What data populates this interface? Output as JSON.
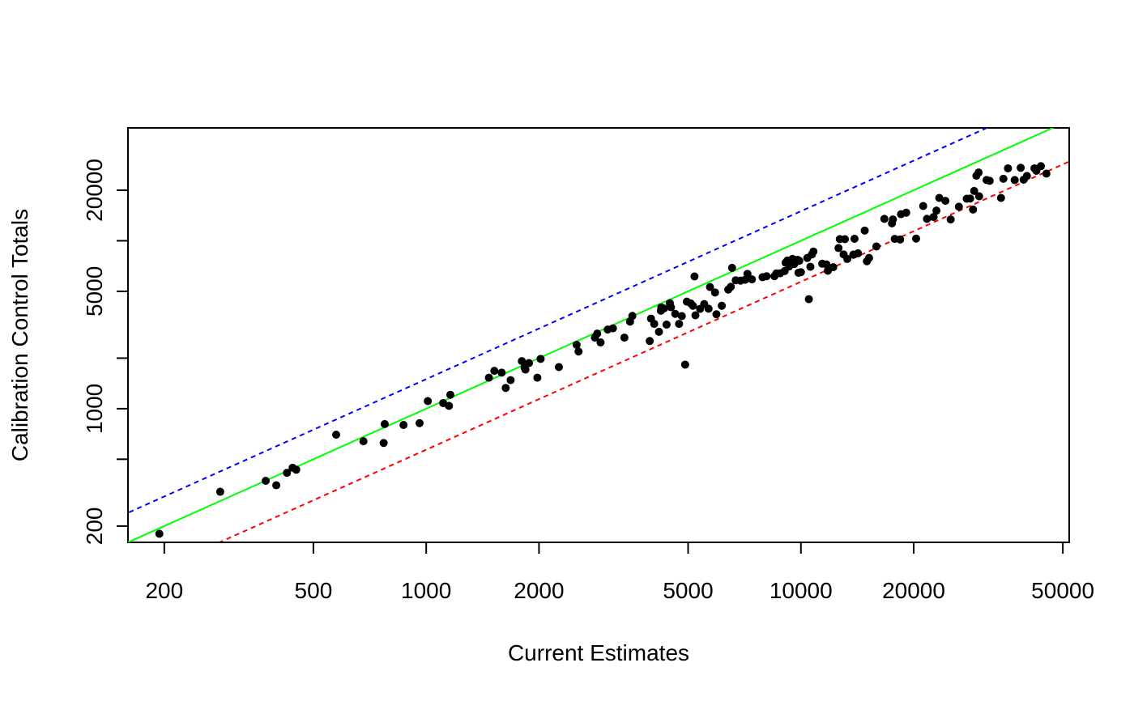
{
  "chart_data": {
    "type": "scatter",
    "title": "",
    "xlabel": "Current Estimates",
    "ylabel": "Calibration Control Totals",
    "xscale": "log",
    "yscale": "log",
    "xlim": [
      160,
      52000
    ],
    "ylim": [
      160,
      47000
    ],
    "x_ticks": [
      200,
      500,
      1000,
      2000,
      5000,
      10000,
      20000,
      50000
    ],
    "x_tick_labels": [
      "200",
      "500",
      "1000",
      "2000",
      "5000",
      "10000",
      "20000",
      "50000"
    ],
    "y_ticks": [
      200,
      500,
      1000,
      2000,
      5000,
      10000,
      20000
    ],
    "y_tick_labels": [
      "200",
      "",
      "1000",
      "",
      "5000",
      "",
      "20000"
    ],
    "grid": false,
    "reference_lines": [
      {
        "color": "#00ff00",
        "style": "solid",
        "multiplier": 1
      },
      {
        "color": "#0000ff",
        "style": "dashed",
        "multiplier": 1.5
      },
      {
        "color": "#ff0000",
        "style": "dashed",
        "multiplier": 0.57
      }
    ],
    "points": [
      [
        194,
        180
      ],
      [
        282,
        320
      ],
      [
        373,
        372
      ],
      [
        398,
        350
      ],
      [
        425,
        415
      ],
      [
        440,
        445
      ],
      [
        450,
        433
      ],
      [
        575,
        700
      ],
      [
        680,
        640
      ],
      [
        770,
        625
      ],
      [
        775,
        810
      ],
      [
        870,
        800
      ],
      [
        960,
        820
      ],
      [
        1010,
        1110
      ],
      [
        1110,
        1080
      ],
      [
        1150,
        1040
      ],
      [
        1160,
        1210
      ],
      [
        1470,
        1530
      ],
      [
        1520,
        1680
      ],
      [
        1590,
        1640
      ],
      [
        1630,
        1330
      ],
      [
        1680,
        1480
      ],
      [
        1800,
        1920
      ],
      [
        1830,
        1760
      ],
      [
        1840,
        1710
      ],
      [
        1880,
        1870
      ],
      [
        1980,
        1530
      ],
      [
        2020,
        1980
      ],
      [
        2260,
        1770
      ],
      [
        2520,
        2400
      ],
      [
        2550,
        2190
      ],
      [
        2820,
        2650
      ],
      [
        2860,
        2800
      ],
      [
        2920,
        2480
      ],
      [
        3050,
        2960
      ],
      [
        3150,
        3010
      ],
      [
        3380,
        2650
      ],
      [
        3500,
        3300
      ],
      [
        3550,
        3570
      ],
      [
        3950,
        2530
      ],
      [
        3980,
        3440
      ],
      [
        4060,
        3200
      ],
      [
        4180,
        2870
      ],
      [
        4230,
        3830
      ],
      [
        4240,
        4010
      ],
      [
        4310,
        3950
      ],
      [
        4380,
        3170
      ],
      [
        4470,
        4250
      ],
      [
        4500,
        4020
      ],
      [
        4620,
        3670
      ],
      [
        4730,
        3200
      ],
      [
        4810,
        3560
      ],
      [
        4910,
        1830
      ],
      [
        4960,
        4340
      ],
      [
        5080,
        4240
      ],
      [
        5150,
        4100
      ],
      [
        5200,
        6130
      ],
      [
        5230,
        3600
      ],
      [
        5380,
        3930
      ],
      [
        5520,
        4200
      ],
      [
        5670,
        3940
      ],
      [
        5720,
        5300
      ],
      [
        5900,
        4920
      ],
      [
        5950,
        3650
      ],
      [
        6150,
        4100
      ],
      [
        6400,
        5120
      ],
      [
        6500,
        5320
      ],
      [
        6550,
        6900
      ],
      [
        6700,
        5820
      ],
      [
        6900,
        5790
      ],
      [
        7100,
        5860
      ],
      [
        7200,
        6350
      ],
      [
        7400,
        5890
      ],
      [
        7900,
        6070
      ],
      [
        8100,
        6150
      ],
      [
        8500,
        6150
      ],
      [
        8600,
        6390
      ],
      [
        8800,
        6400
      ],
      [
        9050,
        6600
      ],
      [
        9100,
        7400
      ],
      [
        9200,
        7620
      ],
      [
        9300,
        7030
      ],
      [
        9500,
        7800
      ],
      [
        9600,
        7270
      ],
      [
        9800,
        7700
      ],
      [
        9850,
        6450
      ],
      [
        9900,
        7600
      ],
      [
        10000,
        6500
      ],
      [
        10400,
        7900
      ],
      [
        10500,
        4490
      ],
      [
        10600,
        7000
      ],
      [
        10700,
        8290
      ],
      [
        10800,
        8630
      ],
      [
        11400,
        7300
      ],
      [
        11700,
        7230
      ],
      [
        11800,
        6630
      ],
      [
        12200,
        6960
      ],
      [
        12600,
        9050
      ],
      [
        12700,
        10230
      ],
      [
        13000,
        8290
      ],
      [
        13100,
        10220
      ],
      [
        13300,
        7800
      ],
      [
        13800,
        8270
      ],
      [
        13900,
        10280
      ],
      [
        14200,
        8420
      ],
      [
        14800,
        11500
      ],
      [
        15000,
        7550
      ],
      [
        15200,
        7900
      ],
      [
        15900,
        9250
      ],
      [
        16700,
        13500
      ],
      [
        17500,
        12700
      ],
      [
        17600,
        13400
      ],
      [
        17800,
        10260
      ],
      [
        18400,
        10180
      ],
      [
        18500,
        14390
      ],
      [
        19100,
        14700
      ],
      [
        20300,
        10300
      ],
      [
        21200,
        16100
      ],
      [
        21700,
        13500
      ],
      [
        22600,
        13850
      ],
      [
        23000,
        15120
      ],
      [
        23400,
        18000
      ],
      [
        24300,
        17280
      ],
      [
        25100,
        13400
      ],
      [
        26400,
        15950
      ],
      [
        27700,
        17800
      ],
      [
        28300,
        17850
      ],
      [
        28800,
        15340
      ],
      [
        29000,
        19800
      ],
      [
        29400,
        24400
      ],
      [
        29800,
        25500
      ],
      [
        29900,
        18400
      ],
      [
        31300,
        23000
      ],
      [
        31900,
        22750
      ],
      [
        34200,
        18000
      ],
      [
        34700,
        23400
      ],
      [
        35700,
        27000
      ],
      [
        37200,
        22990
      ],
      [
        38600,
        27200
      ],
      [
        39300,
        23100
      ],
      [
        40100,
        24300
      ],
      [
        42000,
        27000
      ],
      [
        42500,
        26100
      ],
      [
        43700,
        27800
      ],
      [
        45200,
        25100
      ]
    ]
  }
}
